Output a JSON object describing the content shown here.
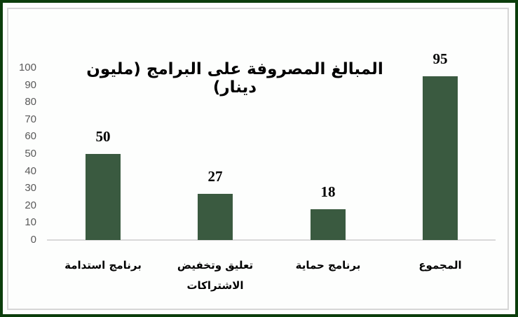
{
  "chart_data": {
    "type": "bar",
    "title": "المبالغ المصروفة على البرامج (مليون دينار)",
    "categories": [
      "برنامج استدامة",
      "تعليق وتخفيض الاشتراكات",
      "برنامج حماية",
      "المجموع"
    ],
    "values": [
      50,
      27,
      18,
      95
    ],
    "data_labels": [
      "50",
      "27",
      "18",
      "95"
    ],
    "xlabel": "",
    "ylabel": "",
    "ylim": [
      0,
      100
    ],
    "yticks": [
      "0",
      "10",
      "20",
      "30",
      "40",
      "50",
      "60",
      "70",
      "80",
      "90",
      "100"
    ],
    "grid": false,
    "legend": null,
    "bar_color": "#3a5a40",
    "frame_color": "#0b3d0b"
  },
  "chart": {
    "title": "المبالغ المصروفة على البرامج (مليون دينار)",
    "y_axis": [
      "100",
      "90",
      "80",
      "70",
      "60",
      "50",
      "40",
      "30",
      "20",
      "10",
      "0"
    ],
    "bars": [
      {
        "label": "برنامج استدامة",
        "value_label": "50",
        "value": 50
      },
      {
        "label": "تعليق وتخفيض الاشتراكات",
        "value_label": "27",
        "value": 27
      },
      {
        "label": "برنامج حماية",
        "value_label": "18",
        "value": 18
      },
      {
        "label": "المجموع",
        "value_label": "95",
        "value": 95
      }
    ]
  }
}
